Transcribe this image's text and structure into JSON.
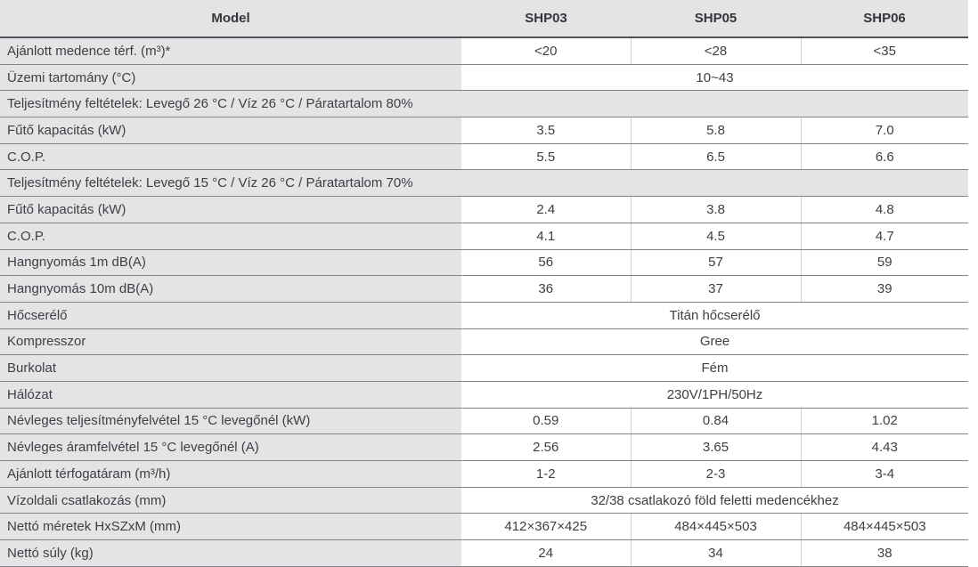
{
  "table": {
    "header": {
      "model_label": "Model",
      "columns": [
        "SHP03",
        "SHP05",
        "SHP06"
      ]
    },
    "rows": [
      {
        "type": "data",
        "label": "Ajánlott medence térf. (m³)*",
        "values": [
          "<20",
          "<28",
          "<35"
        ]
      },
      {
        "type": "span",
        "label": "Üzemi tartomány (°C)",
        "value": "10~43"
      },
      {
        "type": "section",
        "label": "Teljesítmény feltételek: Levegő 26 °C / Víz 26 °C / Páratartalom 80%"
      },
      {
        "type": "data",
        "label": "Fűtő kapacitás (kW)",
        "values": [
          "3.5",
          "5.8",
          "7.0"
        ]
      },
      {
        "type": "data",
        "label": "C.O.P.",
        "values": [
          "5.5",
          "6.5",
          "6.6"
        ]
      },
      {
        "type": "section",
        "label": "Teljesítmény feltételek: Levegő 15 °C / Víz 26 °C / Páratartalom 70%"
      },
      {
        "type": "data",
        "label": "Fűtő kapacitás (kW)",
        "values": [
          "2.4",
          "3.8",
          "4.8"
        ]
      },
      {
        "type": "data",
        "label": "C.O.P.",
        "values": [
          "4.1",
          "4.5",
          "4.7"
        ]
      },
      {
        "type": "data",
        "label": "Hangnyomás 1m dB(A)",
        "values": [
          "56",
          "57",
          "59"
        ]
      },
      {
        "type": "data",
        "label": "Hangnyomás 10m dB(A)",
        "values": [
          "36",
          "37",
          "39"
        ]
      },
      {
        "type": "span",
        "label": "Hőcserélő",
        "value": "Titán hőcserélő"
      },
      {
        "type": "span",
        "label": "Kompresszor",
        "value": "Gree"
      },
      {
        "type": "span",
        "label": "Burkolat",
        "value": "Fém"
      },
      {
        "type": "span",
        "label": "Hálózat",
        "value": "230V/1PH/50Hz"
      },
      {
        "type": "data",
        "label": "Névleges teljesítményfelvétel 15 °C levegőnél (kW)",
        "values": [
          "0.59",
          "0.84",
          "1.02"
        ]
      },
      {
        "type": "data",
        "label": "Névleges áramfelvétel 15 °C levegőnél (A)",
        "values": [
          "2.56",
          "3.65",
          "4.43"
        ]
      },
      {
        "type": "data",
        "label": "Ajánlott térfogatáram (m³/h)",
        "values": [
          "1-2",
          "2-3",
          "3-4"
        ]
      },
      {
        "type": "span",
        "label": "Vízoldali csatlakozás (mm)",
        "value": "32/38 csatlakozó föld feletti medencékhez"
      },
      {
        "type": "data",
        "label": "Nettó méretek HxSZxM (mm)",
        "values": [
          "412×367×425",
          "484×445×503",
          "484×445×503"
        ]
      },
      {
        "type": "data",
        "label": "Nettó súly (kg)",
        "values": [
          "24",
          "34",
          "38"
        ]
      }
    ],
    "colors": {
      "cell_grey": "#e4e4e6",
      "row_border": "#828387",
      "header_border": "#515257",
      "column_divider": "#d2d3d5",
      "text": "#3e3f43",
      "header_text": "#353639"
    }
  }
}
